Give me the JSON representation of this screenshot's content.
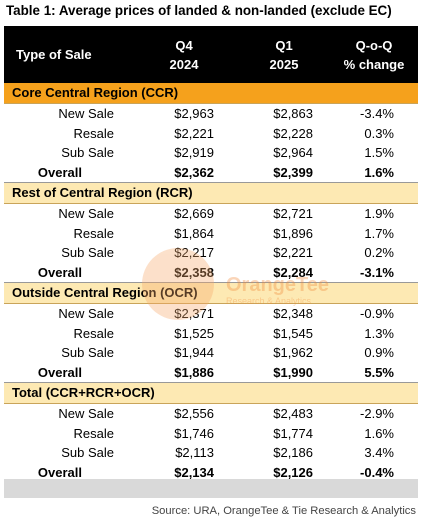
{
  "title": "Table 1: Average prices of landed & non-landed (exclude EC)",
  "header": {
    "col1": "Type of Sale",
    "col2a": "Q4",
    "col2b": "2024",
    "col3a": "Q1",
    "col3b": "2025",
    "col4a": "Q-o-Q",
    "col4b": "% change"
  },
  "sections": [
    {
      "name": "Core Central Region (CCR)",
      "rows": [
        [
          "New Sale",
          "$2,963",
          "$2,863",
          "-3.4%"
        ],
        [
          "Resale",
          "$2,221",
          "$2,228",
          "0.3%"
        ],
        [
          "Sub Sale",
          "$2,919",
          "$2,964",
          "1.5%"
        ]
      ],
      "total": [
        "Overall",
        "$2,362",
        "$2,399",
        "1.6%"
      ]
    },
    {
      "name": "Rest of Central Region (RCR)",
      "rows": [
        [
          "New Sale",
          "$2,669",
          "$2,721",
          "1.9%"
        ],
        [
          "Resale",
          "$1,864",
          "$1,896",
          "1.7%"
        ],
        [
          "Sub Sale",
          "$2,217",
          "$2,221",
          "0.2%"
        ]
      ],
      "total": [
        "Overall",
        "$2,358",
        "$2,284",
        "-3.1%"
      ]
    },
    {
      "name": "Outside Central Region (OCR)",
      "rows": [
        [
          "New Sale",
          "$2,371",
          "$2,348",
          "-0.9%"
        ],
        [
          "Resale",
          "$1,525",
          "$1,545",
          "1.3%"
        ],
        [
          "Sub Sale",
          "$1,944",
          "$1,962",
          "0.9%"
        ]
      ],
      "total": [
        "Overall",
        "$1,886",
        "$1,990",
        "5.5%"
      ]
    },
    {
      "name": "Total (CCR+RCR+OCR)",
      "rows": [
        [
          "New Sale",
          "$2,556",
          "$2,483",
          "-2.9%"
        ],
        [
          "Resale",
          "$1,746",
          "$1,774",
          "1.6%"
        ],
        [
          "Sub Sale",
          "$2,113",
          "$2,186",
          "3.4%"
        ]
      ],
      "total": [
        "Overall",
        "$2,134",
        "$2,126",
        "-0.4%"
      ]
    }
  ],
  "watermark": {
    "brand": "OrangeTee",
    "sub": "Research & Analytics"
  },
  "source": "Source: URA, OrangeTee & Tie Research & Analytics",
  "colors": {
    "header_bg": "#000000",
    "section_main": "#f5a11c",
    "section_light": "#fde9b3",
    "footer_band": "#d9d9d9"
  }
}
